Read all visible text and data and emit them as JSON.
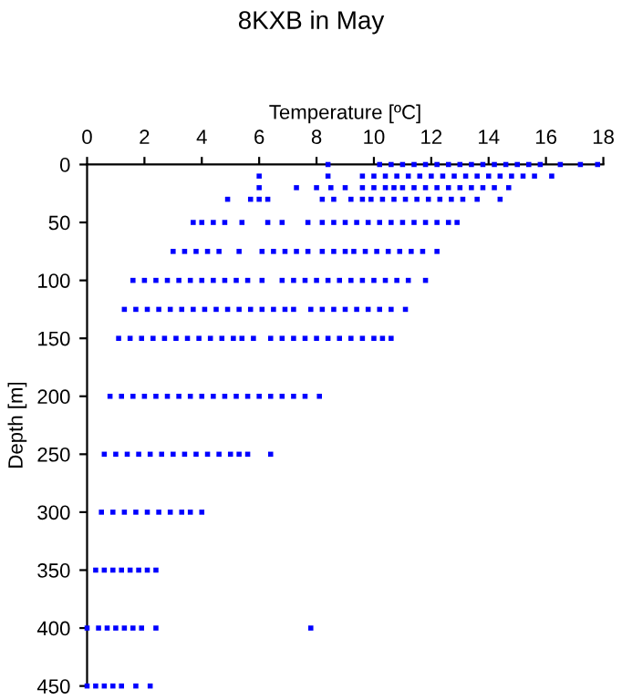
{
  "chart_data": {
    "type": "scatter",
    "title": "8KXB in May",
    "xlabel": "Temperature [ºC]",
    "ylabel": "Depth [m]",
    "xlim": [
      0,
      18
    ],
    "xticks": [
      0,
      2,
      4,
      6,
      8,
      10,
      12,
      14,
      16,
      18
    ],
    "ylim": [
      450,
      0
    ],
    "yticks": [
      0,
      50,
      100,
      150,
      200,
      250,
      300,
      350,
      400,
      450
    ],
    "marker": "square",
    "grid": false,
    "series": [
      {
        "color": "#0000ff",
        "x": [
          8.4,
          10.2,
          10.6,
          11.0,
          11.4,
          11.8,
          12.2,
          12.6,
          13.0,
          13.4,
          13.8,
          14.2,
          14.6,
          15.0,
          15.4,
          15.8,
          16.5,
          17.2,
          17.8
        ],
        "values": [
          0,
          0,
          0,
          0,
          0,
          0,
          0,
          0,
          0,
          0,
          0,
          0,
          0,
          0,
          0,
          0,
          0,
          0,
          0
        ]
      },
      {
        "color": "#0000ff",
        "x": [
          6.0,
          8.4,
          9.6,
          10.0,
          10.4,
          10.8,
          11.2,
          11.6,
          12.0,
          12.4,
          12.8,
          13.2,
          13.6,
          14.0,
          14.4,
          14.8,
          15.2,
          15.6,
          16.2
        ],
        "values": [
          10,
          10,
          10,
          10,
          10,
          10,
          10,
          10,
          10,
          10,
          10,
          10,
          10,
          10,
          10,
          10,
          10,
          10,
          10
        ]
      },
      {
        "color": "#0000ff",
        "x": [
          6.0,
          7.3,
          8.0,
          8.5,
          9.0,
          9.6,
          10.0,
          10.4,
          10.7,
          11.0,
          11.4,
          11.8,
          12.2,
          12.6,
          13.0,
          13.4,
          13.8,
          14.2,
          14.7
        ],
        "values": [
          20,
          20,
          20,
          20,
          20,
          20,
          20,
          20,
          20,
          20,
          20,
          20,
          20,
          20,
          20,
          20,
          20,
          20,
          20
        ]
      },
      {
        "color": "#0000ff",
        "x": [
          4.9,
          5.7,
          6.0,
          6.3,
          8.2,
          8.6,
          9.2,
          9.6,
          9.9,
          10.3,
          10.7,
          11.1,
          11.5,
          11.9,
          12.3,
          12.7,
          13.1,
          13.6,
          14.4
        ],
        "values": [
          30,
          30,
          30,
          30,
          30,
          30,
          30,
          30,
          30,
          30,
          30,
          30,
          30,
          30,
          30,
          30,
          30,
          30,
          30
        ]
      },
      {
        "color": "#0000ff",
        "x": [
          3.7,
          4.0,
          4.4,
          4.8,
          5.4,
          6.3,
          6.8,
          7.7,
          8.2,
          8.6,
          9.0,
          9.4,
          9.8,
          10.2,
          10.6,
          11.0,
          11.4,
          11.8,
          12.2,
          12.6,
          12.9
        ],
        "values": [
          50,
          50,
          50,
          50,
          50,
          50,
          50,
          50,
          50,
          50,
          50,
          50,
          50,
          50,
          50,
          50,
          50,
          50,
          50,
          50,
          50
        ]
      },
      {
        "color": "#0000ff",
        "x": [
          3.0,
          3.4,
          3.8,
          4.2,
          4.6,
          5.3,
          6.1,
          6.5,
          6.9,
          7.3,
          7.7,
          8.2,
          8.6,
          9.0,
          9.3,
          9.7,
          10.1,
          10.5,
          10.9,
          11.3,
          11.7,
          12.2
        ],
        "values": [
          75,
          75,
          75,
          75,
          75,
          75,
          75,
          75,
          75,
          75,
          75,
          75,
          75,
          75,
          75,
          75,
          75,
          75,
          75,
          75,
          75,
          75
        ]
      },
      {
        "color": "#0000ff",
        "x": [
          1.6,
          2.0,
          2.4,
          2.8,
          3.2,
          3.6,
          4.0,
          4.4,
          4.8,
          5.2,
          5.6,
          6.1,
          6.8,
          7.2,
          7.6,
          8.0,
          8.4,
          8.8,
          9.2,
          9.6,
          10.0,
          10.4,
          10.8,
          11.2,
          11.8
        ],
        "values": [
          100,
          100,
          100,
          100,
          100,
          100,
          100,
          100,
          100,
          100,
          100,
          100,
          100,
          100,
          100,
          100,
          100,
          100,
          100,
          100,
          100,
          100,
          100,
          100,
          100
        ]
      },
      {
        "color": "#0000ff",
        "x": [
          1.3,
          1.7,
          2.1,
          2.5,
          2.9,
          3.3,
          3.7,
          4.1,
          4.5,
          4.9,
          5.3,
          5.7,
          6.1,
          6.5,
          6.9,
          7.2,
          7.8,
          8.2,
          8.6,
          9.0,
          9.4,
          9.8,
          10.2,
          10.6,
          11.1
        ],
        "values": [
          125,
          125,
          125,
          125,
          125,
          125,
          125,
          125,
          125,
          125,
          125,
          125,
          125,
          125,
          125,
          125,
          125,
          125,
          125,
          125,
          125,
          125,
          125,
          125,
          125
        ]
      },
      {
        "color": "#0000ff",
        "x": [
          1.1,
          1.5,
          1.9,
          2.3,
          2.7,
          3.1,
          3.5,
          3.9,
          4.3,
          4.7,
          5.1,
          5.4,
          5.8,
          6.4,
          6.8,
          7.2,
          7.6,
          8.0,
          8.4,
          8.8,
          9.2,
          9.6,
          10.0,
          10.3,
          10.6
        ],
        "values": [
          150,
          150,
          150,
          150,
          150,
          150,
          150,
          150,
          150,
          150,
          150,
          150,
          150,
          150,
          150,
          150,
          150,
          150,
          150,
          150,
          150,
          150,
          150,
          150,
          150
        ]
      },
      {
        "color": "#0000ff",
        "x": [
          0.8,
          1.2,
          1.6,
          2.0,
          2.4,
          2.8,
          3.2,
          3.6,
          4.0,
          4.4,
          4.8,
          5.2,
          5.6,
          6.0,
          6.4,
          6.8,
          7.2,
          7.6,
          8.1
        ],
        "values": [
          200,
          200,
          200,
          200,
          200,
          200,
          200,
          200,
          200,
          200,
          200,
          200,
          200,
          200,
          200,
          200,
          200,
          200,
          200
        ]
      },
      {
        "color": "#0000ff",
        "x": [
          0.6,
          1.0,
          1.4,
          1.8,
          2.2,
          2.6,
          3.0,
          3.4,
          3.8,
          4.2,
          4.6,
          5.0,
          5.3,
          5.6,
          6.4
        ],
        "values": [
          250,
          250,
          250,
          250,
          250,
          250,
          250,
          250,
          250,
          250,
          250,
          250,
          250,
          250,
          250
        ]
      },
      {
        "color": "#0000ff",
        "x": [
          0.5,
          0.9,
          1.3,
          1.7,
          2.1,
          2.5,
          2.9,
          3.3,
          3.6,
          4.0
        ],
        "values": [
          300,
          300,
          300,
          300,
          300,
          300,
          300,
          300,
          300,
          300
        ]
      },
      {
        "color": "#0000ff",
        "x": [
          0.3,
          0.6,
          0.9,
          1.2,
          1.5,
          1.8,
          2.1,
          2.4
        ],
        "values": [
          350,
          350,
          350,
          350,
          350,
          350,
          350,
          350
        ]
      },
      {
        "color": "#0000ff",
        "x": [
          0.0,
          0.4,
          0.7,
          1.0,
          1.3,
          1.6,
          1.9,
          2.4,
          7.8
        ],
        "values": [
          400,
          400,
          400,
          400,
          400,
          400,
          400,
          400,
          400
        ]
      },
      {
        "color": "#0000ff",
        "x": [
          0.0,
          0.3,
          0.6,
          0.9,
          1.2,
          1.7,
          2.2
        ],
        "values": [
          450,
          450,
          450,
          450,
          450,
          450,
          450
        ]
      }
    ]
  }
}
